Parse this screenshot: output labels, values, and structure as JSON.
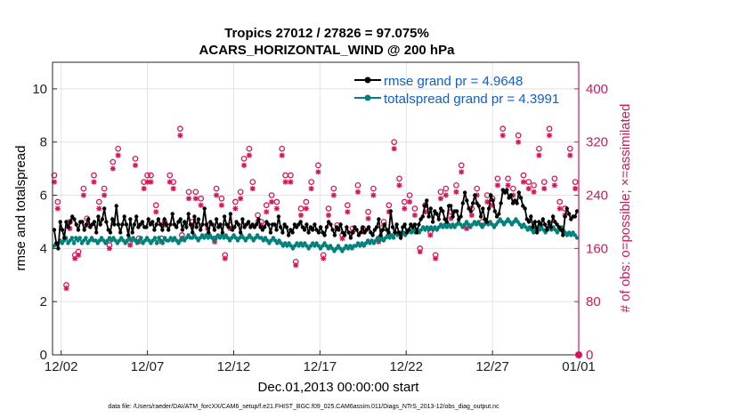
{
  "chart_data": {
    "type": "line",
    "title": "Tropics 27012 / 27826 = 97.075%",
    "subtitle": "ACARS_HORIZONTAL_WIND @ 200 hPa",
    "xlabel": "Dec.01,2013 00:00:00 start",
    "ylabel": "rmse and totalspread",
    "y2label": "# of obs: o=possible; ×=assimilated",
    "footer": "data file: /Users/raeder/DAI/ATM_forcXX/CAM6_setup/f.e21.FHIST_BGC.f09_025.CAM6assim.011/Diags_NTrS_2013-12/obs_diag_output.nc",
    "x_range_days": [
      0.5,
      31.0
    ],
    "x_ticks": [
      1.0,
      6.0,
      11.0,
      16.0,
      21.0,
      26.0,
      31.0
    ],
    "x_tick_labels": [
      "12/02",
      "12/07",
      "12/12",
      "12/17",
      "12/22",
      "12/27",
      "01/01"
    ],
    "ylim": [
      0,
      11
    ],
    "y_ticks": [
      0,
      2,
      4,
      6,
      8,
      10
    ],
    "y_tick_labels": [
      "0",
      "2",
      "4",
      "6",
      "8",
      "10"
    ],
    "y2lim": [
      0,
      440
    ],
    "y2_ticks": [
      0,
      80,
      160,
      240,
      320,
      400
    ],
    "y2_tick_labels": [
      "0",
      "80",
      "160",
      "240",
      "320",
      "400"
    ],
    "grid": true,
    "legend": "top-right",
    "colors": {
      "rmse": "#000000",
      "spread": "#00807a",
      "obs": "#d6145a",
      "legend_text": "#0a5fd6"
    },
    "series": [
      {
        "name": "rmse grand pr = 4.9648",
        "values": [
          4.7,
          4.2,
          4.0,
          5.0,
          4.7,
          4.4,
          5.0,
          4.8,
          5.0,
          5.2,
          5.1,
          4.9,
          4.7,
          5.0,
          5.0,
          4.7,
          4.9,
          5.1,
          4.8,
          4.9,
          5.0,
          4.6,
          5.2,
          4.9,
          5.1,
          5.5,
          5.0,
          4.7,
          4.6,
          5.1,
          4.9,
          5.6,
          4.9,
          4.6,
          4.9,
          5.2,
          4.9,
          4.5,
          5.1,
          4.6,
          4.9,
          5.2,
          4.8,
          4.9,
          5.0,
          4.8,
          4.8,
          5.1,
          4.9,
          5.0,
          4.7,
          4.9,
          5.1,
          4.9,
          4.7,
          5.1,
          4.9,
          4.7,
          4.9,
          5.3,
          4.9,
          4.8,
          5.0,
          5.1,
          4.7,
          5.0,
          4.8,
          5.3,
          4.9,
          4.6,
          5.2,
          4.8,
          5.1,
          4.7,
          4.9,
          5.5,
          4.9,
          4.6,
          5.0,
          4.9,
          4.7,
          5.1,
          4.8,
          4.9,
          4.6,
          5.2,
          4.9,
          4.8,
          5.3,
          4.7,
          4.8,
          5.0,
          4.9,
          4.6,
          5.1,
          4.8,
          4.9,
          5.0,
          4.8,
          4.9,
          4.8,
          4.9,
          5.1,
          4.8,
          4.7,
          4.8,
          5.0,
          4.9,
          4.6,
          4.9,
          4.9,
          4.7,
          5.2,
          4.8,
          4.6,
          4.9,
          4.8,
          4.5,
          4.7,
          4.6,
          4.9,
          4.8,
          4.9,
          5.0,
          4.8,
          4.7,
          4.9,
          4.6,
          4.8,
          4.7,
          4.9,
          4.7,
          4.6,
          4.8,
          4.6,
          4.5,
          4.8,
          5.0,
          4.9,
          4.7,
          4.5,
          4.8,
          4.7,
          4.9,
          4.6,
          4.5,
          4.8,
          4.6,
          4.4,
          4.6,
          4.8,
          4.7,
          4.5,
          4.6,
          4.8,
          4.6,
          4.7,
          4.8,
          4.6,
          4.5,
          4.7,
          4.8,
          5.1,
          4.5,
          4.7,
          4.9,
          4.7,
          4.6,
          5.4,
          4.8,
          4.6,
          4.9,
          4.6,
          4.4,
          4.8,
          4.9,
          4.6,
          4.7,
          4.9,
          4.8,
          4.9,
          4.6,
          4.9,
          5.1,
          5.2,
          5.6,
          5.8,
          5.2,
          5.5,
          5.0,
          5.4,
          5.3,
          5.1,
          5.5,
          5.4,
          5.1,
          5.0,
          5.6,
          5.6,
          5.2,
          5.4,
          5.4,
          5.1,
          5.2,
          5.7,
          6.1,
          5.8,
          5.5,
          5.4,
          5.7,
          6.0,
          5.7,
          5.6,
          5.2,
          5.5,
          5.1,
          5.0,
          5.5,
          6.0,
          5.8,
          5.4,
          5.2,
          5.3,
          5.7,
          6.2,
          6.1,
          6.2,
          5.9,
          6.0,
          5.7,
          5.8,
          5.7,
          6.1,
          5.9,
          5.6,
          5.5,
          5.1,
          5.0,
          5.2,
          4.8,
          5.0,
          4.6,
          5.0,
          4.9,
          5.1,
          4.9,
          4.7,
          5.0,
          4.8,
          5.2,
          5.0,
          4.9,
          4.8,
          4.7,
          4.5,
          5.2,
          5.5,
          5.3,
          5.1,
          5.2,
          5.2,
          5.4
        ]
      },
      {
        "name": "totalspread grand pr = 4.3991",
        "values": [
          4.1,
          4.2,
          4.2,
          4.3,
          4.2,
          4.3,
          4.4,
          4.2,
          4.3,
          4.4,
          4.2,
          4.4,
          4.3,
          4.4,
          4.2,
          4.3,
          4.4,
          4.2,
          4.3,
          4.4,
          4.3,
          4.3,
          4.2,
          4.3,
          4.4,
          4.3,
          4.2,
          4.3,
          4.4,
          4.3,
          4.4,
          4.3,
          4.2,
          4.3,
          4.4,
          4.3,
          4.2,
          4.3,
          4.4,
          4.3,
          4.4,
          4.3,
          4.2,
          4.3,
          4.4,
          4.2,
          4.3,
          4.4,
          4.3,
          4.2,
          4.3,
          4.4,
          4.2,
          4.4,
          4.3,
          4.2,
          4.4,
          4.3,
          4.3,
          4.4,
          4.3,
          4.4,
          4.3,
          4.2,
          4.3,
          4.4,
          4.3,
          4.4,
          4.5,
          4.4,
          4.4,
          4.5,
          4.4,
          4.3,
          4.4,
          4.5,
          4.4,
          4.5,
          4.4,
          4.5,
          4.4,
          4.3,
          4.4,
          4.5,
          4.4,
          4.5,
          4.4,
          4.5,
          4.4,
          4.3,
          4.4,
          4.5,
          4.4,
          4.3,
          4.4,
          4.5,
          4.4,
          4.3,
          4.4,
          4.5,
          4.4,
          4.3,
          4.4,
          4.5,
          4.4,
          4.4,
          4.3,
          4.4,
          4.3,
          4.2,
          4.3,
          4.4,
          4.3,
          4.2,
          4.3,
          4.2,
          4.1,
          4.2,
          4.1,
          4.2,
          4.1,
          4.0,
          4.1,
          4.2,
          4.1,
          4.2,
          4.1,
          4.2,
          4.1,
          4.0,
          4.1,
          4.2,
          4.1,
          4.2,
          4.1,
          4.0,
          4.1,
          4.2,
          4.1,
          4.0,
          4.1,
          4.0,
          3.9,
          4.0,
          4.1,
          4.0,
          3.9,
          4.0,
          4.1,
          4.0,
          4.1,
          4.0,
          4.1,
          4.1,
          4.2,
          4.1,
          4.2,
          4.1,
          4.2,
          4.3,
          4.2,
          4.3,
          4.2,
          4.3,
          4.4,
          4.3,
          4.4,
          4.3,
          4.4,
          4.5,
          4.4,
          4.5,
          4.4,
          4.6,
          4.5,
          4.6,
          4.5,
          4.6,
          4.5,
          4.6,
          4.7,
          4.6,
          4.7,
          4.6,
          4.7,
          4.6,
          4.7,
          4.8,
          4.7,
          4.8,
          4.7,
          4.8,
          4.7,
          4.8,
          4.7,
          4.8,
          4.9,
          4.8,
          4.9,
          4.8,
          4.9,
          4.8,
          4.9,
          4.8,
          4.9,
          5.0,
          4.9,
          4.8,
          4.9,
          5.0,
          4.9,
          4.8,
          4.9,
          5.0,
          4.9,
          5.0,
          4.9,
          4.8,
          4.9,
          5.0,
          4.9,
          5.0,
          4.9,
          4.8,
          4.9,
          5.0,
          5.1,
          5.0,
          4.9,
          5.0,
          5.1,
          5.0,
          4.9,
          5.0,
          5.1,
          5.0,
          4.9,
          4.8,
          4.9,
          4.8,
          4.7,
          4.8,
          4.7,
          4.6,
          4.7,
          4.8,
          4.7,
          4.8,
          4.7,
          4.6,
          4.7,
          4.8,
          4.7,
          4.8,
          4.7,
          4.6,
          4.7,
          4.8,
          4.7,
          4.6,
          4.5,
          4.6,
          4.5,
          4.6,
          4.5,
          4.4
        ]
      },
      {
        "name": "# obs possible",
        "axis": "right",
        "x": [
          0.6,
          0.8,
          1.3,
          1.5,
          1.8,
          2.0,
          2.3,
          2.5,
          2.9,
          3.2,
          3.5,
          3.8,
          4.0,
          4.3,
          5.0,
          5.3,
          5.5,
          5.8,
          6.0,
          6.2,
          6.5,
          6.8,
          7.0,
          7.3,
          7.5,
          7.9,
          8.0,
          8.4,
          8.6,
          8.8,
          9.1,
          9.5,
          9.9,
          10.0,
          10.3,
          10.5,
          10.8,
          11.1,
          11.4,
          11.6,
          11.9,
          12.1,
          12.4,
          12.6,
          12.9,
          13.2,
          13.5,
          13.8,
          14.0,
          14.3,
          14.6,
          14.9,
          15.2,
          15.5,
          15.9,
          16.2,
          16.5,
          16.8,
          17.0,
          17.3,
          17.6,
          17.9,
          18.2,
          18.5,
          18.8,
          19.1,
          19.4,
          19.7,
          20.0,
          20.3,
          20.6,
          20.9,
          21.2,
          21.5,
          21.8,
          22.1,
          22.4,
          22.7,
          23.0,
          23.3,
          23.6,
          23.9,
          24.2,
          24.5,
          24.8,
          25.1,
          25.4,
          25.7,
          26.0,
          26.3,
          26.6,
          26.9,
          27.2,
          27.5,
          27.8,
          28.1,
          28.4,
          28.7,
          29.0,
          29.3,
          29.6,
          29.9,
          30.2,
          30.5,
          30.8
        ],
        "values": [
          270,
          230,
          105,
          200,
          150,
          155,
          250,
          205,
          270,
          230,
          250,
          165,
          290,
          310,
          170,
          295,
          175,
          260,
          270,
          270,
          225,
          175,
          200,
          270,
          260,
          340,
          180,
          245,
          200,
          245,
          235,
          195,
          175,
          250,
          235,
          150,
          195,
          230,
          245,
          295,
          310,
          260,
          210,
          200,
          225,
          240,
          230,
          310,
          270,
          270,
          140,
          220,
          230,
          260,
          285,
          150,
          220,
          250,
          195,
          180,
          225,
          190,
          255,
          190,
          215,
          250,
          175,
          200,
          225,
          320,
          265,
          230,
          240,
          220,
          160,
          225,
          185,
          150,
          245,
          250,
          215,
          255,
          285,
          195,
          220,
          250,
          200,
          240,
          235,
          265,
          340,
          265,
          250,
          330,
          270,
          260,
          255,
          310,
          260,
          340,
          265,
          230,
          220,
          310,
          260
        ]
      },
      {
        "name": "# obs assimilated",
        "axis": "right",
        "x": [
          0.6,
          0.8,
          1.3,
          1.5,
          1.8,
          2.0,
          2.3,
          2.5,
          2.9,
          3.2,
          3.5,
          3.8,
          4.0,
          4.3,
          5.0,
          5.3,
          5.5,
          5.8,
          6.0,
          6.2,
          6.5,
          6.8,
          7.0,
          7.3,
          7.5,
          7.9,
          8.0,
          8.4,
          8.6,
          8.8,
          9.1,
          9.5,
          9.9,
          10.0,
          10.3,
          10.5,
          10.8,
          11.1,
          11.4,
          11.6,
          11.9,
          12.1,
          12.4,
          12.6,
          12.9,
          13.2,
          13.5,
          13.8,
          14.0,
          14.3,
          14.6,
          14.9,
          15.2,
          15.5,
          15.9,
          16.2,
          16.5,
          16.8,
          17.0,
          17.3,
          17.6,
          17.9,
          18.2,
          18.5,
          18.8,
          19.1,
          19.4,
          19.7,
          20.0,
          20.3,
          20.6,
          20.9,
          21.2,
          21.5,
          21.8,
          22.1,
          22.4,
          22.7,
          23.0,
          23.3,
          23.6,
          23.9,
          24.2,
          24.5,
          24.8,
          25.1,
          25.4,
          25.7,
          26.0,
          26.3,
          26.6,
          26.9,
          27.2,
          27.5,
          27.8,
          28.1,
          28.4,
          28.7,
          29.0,
          29.3,
          29.6,
          29.9,
          30.2,
          30.5,
          30.8
        ],
        "values": [
          260,
          220,
          100,
          190,
          145,
          150,
          240,
          195,
          260,
          220,
          240,
          160,
          280,
          300,
          165,
          285,
          170,
          250,
          260,
          260,
          215,
          170,
          195,
          260,
          250,
          330,
          175,
          235,
          195,
          235,
          225,
          190,
          170,
          240,
          225,
          145,
          190,
          220,
          235,
          285,
          300,
          250,
          200,
          195,
          215,
          230,
          220,
          300,
          260,
          260,
          135,
          210,
          220,
          250,
          275,
          145,
          210,
          240,
          190,
          175,
          215,
          185,
          245,
          185,
          205,
          240,
          170,
          195,
          215,
          310,
          255,
          220,
          230,
          210,
          155,
          215,
          180,
          145,
          235,
          240,
          205,
          245,
          275,
          190,
          210,
          240,
          195,
          230,
          225,
          255,
          330,
          255,
          240,
          320,
          260,
          250,
          245,
          300,
          250,
          330,
          255,
          220,
          210,
          300,
          250
        ]
      }
    ]
  }
}
